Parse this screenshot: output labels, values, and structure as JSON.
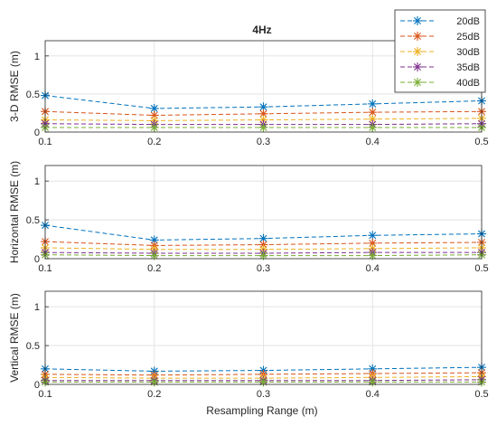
{
  "figure": {
    "title": "4Hz",
    "xlabel": "Resampling Range (m)"
  },
  "legend": {
    "placement": "top-right",
    "entries": [
      "20dB",
      "25dB",
      "30dB",
      "35dB",
      "40dB"
    ]
  },
  "chart_data": [
    {
      "type": "line",
      "title": "4Hz",
      "xlabel": "",
      "ylabel": "3-D RMSE (m)",
      "x": [
        0.1,
        0.2,
        0.3,
        0.4,
        0.5
      ],
      "xticks": [
        "0.1",
        "0.2",
        "0.3",
        "0.4",
        "0.5"
      ],
      "yticks": [
        "0",
        "0.5",
        "1"
      ],
      "xlim": [
        0.1,
        0.5
      ],
      "ylim": [
        0,
        1.2
      ],
      "grid": true,
      "series": [
        {
          "name": "20dB",
          "color": "#0072BD",
          "values": [
            0.48,
            0.31,
            0.33,
            0.37,
            0.41
          ]
        },
        {
          "name": "25dB",
          "color": "#D95319",
          "values": [
            0.27,
            0.22,
            0.24,
            0.26,
            0.27
          ]
        },
        {
          "name": "30dB",
          "color": "#EDB120",
          "values": [
            0.16,
            0.15,
            0.16,
            0.17,
            0.18
          ]
        },
        {
          "name": "35dB",
          "color": "#7E2F8E",
          "values": [
            0.11,
            0.1,
            0.1,
            0.1,
            0.11
          ]
        },
        {
          "name": "40dB",
          "color": "#77AC30",
          "values": [
            0.06,
            0.06,
            0.06,
            0.06,
            0.06
          ]
        }
      ]
    },
    {
      "type": "line",
      "title": "",
      "xlabel": "",
      "ylabel": "Horizontal RMSE (m)",
      "x": [
        0.1,
        0.2,
        0.3,
        0.4,
        0.5
      ],
      "xticks": [
        "0.1",
        "0.2",
        "0.3",
        "0.4",
        "0.5"
      ],
      "yticks": [
        "0",
        "0.5",
        "1"
      ],
      "xlim": [
        0.1,
        0.5
      ],
      "ylim": [
        0,
        1.2
      ],
      "grid": true,
      "series": [
        {
          "name": "20dB",
          "color": "#0072BD",
          "values": [
            0.43,
            0.24,
            0.26,
            0.3,
            0.32
          ]
        },
        {
          "name": "25dB",
          "color": "#D95319",
          "values": [
            0.22,
            0.17,
            0.18,
            0.2,
            0.21
          ]
        },
        {
          "name": "30dB",
          "color": "#EDB120",
          "values": [
            0.14,
            0.12,
            0.12,
            0.13,
            0.14
          ]
        },
        {
          "name": "35dB",
          "color": "#7E2F8E",
          "values": [
            0.08,
            0.07,
            0.07,
            0.08,
            0.08
          ]
        },
        {
          "name": "40dB",
          "color": "#77AC30",
          "values": [
            0.05,
            0.04,
            0.04,
            0.04,
            0.05
          ]
        }
      ]
    },
    {
      "type": "line",
      "title": "",
      "xlabel": "Resampling Range (m)",
      "ylabel": "Vertical RMSE (m)",
      "x": [
        0.1,
        0.2,
        0.3,
        0.4,
        0.5
      ],
      "xticks": [
        "0.1",
        "0.2",
        "0.3",
        "0.4",
        "0.5"
      ],
      "yticks": [
        "0",
        "0.5",
        "1"
      ],
      "xlim": [
        0.1,
        0.5
      ],
      "ylim": [
        0,
        1.2
      ],
      "grid": true,
      "series": [
        {
          "name": "20dB",
          "color": "#0072BD",
          "values": [
            0.2,
            0.17,
            0.18,
            0.2,
            0.22
          ]
        },
        {
          "name": "25dB",
          "color": "#D95319",
          "values": [
            0.13,
            0.12,
            0.13,
            0.14,
            0.15
          ]
        },
        {
          "name": "30dB",
          "color": "#EDB120",
          "values": [
            0.09,
            0.08,
            0.08,
            0.09,
            0.1
          ]
        },
        {
          "name": "35dB",
          "color": "#7E2F8E",
          "values": [
            0.05,
            0.05,
            0.05,
            0.05,
            0.06
          ]
        },
        {
          "name": "40dB",
          "color": "#77AC30",
          "values": [
            0.03,
            0.03,
            0.03,
            0.03,
            0.03
          ]
        }
      ]
    }
  ]
}
